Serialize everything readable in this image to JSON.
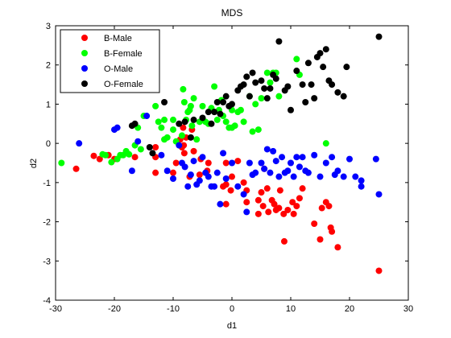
{
  "chart_data": {
    "type": "scatter",
    "title": "MDS",
    "xlabel": "d1",
    "ylabel": "d2",
    "xlim": [
      -30,
      30
    ],
    "ylim": [
      -4,
      3
    ],
    "xticks": [
      -30,
      -20,
      -10,
      0,
      10,
      20,
      30
    ],
    "yticks": [
      -4,
      -3,
      -2,
      -1,
      0,
      1,
      2,
      3
    ],
    "grid": false,
    "legend_position": "top-left",
    "series": [
      {
        "name": "B-Male",
        "color": "#ff0000",
        "points": [
          [
            -26.5,
            -0.65
          ],
          [
            -23.5,
            -0.32
          ],
          [
            -22.5,
            -0.4
          ],
          [
            -21,
            -0.3
          ],
          [
            -20,
            -0.4
          ],
          [
            -16.5,
            -0.35
          ],
          [
            -13,
            -0.1
          ],
          [
            -13,
            -0.35
          ],
          [
            -13,
            -0.75
          ],
          [
            -10,
            -0.75
          ],
          [
            -9.5,
            -0.5
          ],
          [
            -8.8,
            0.1
          ],
          [
            -8.5,
            -0.1
          ],
          [
            -8.3,
            0.4
          ],
          [
            -8.2,
            -0.05
          ],
          [
            -8.1,
            -0.25
          ],
          [
            -7.8,
            0.15
          ],
          [
            -7.2,
            -0.85
          ],
          [
            -6.8,
            0.35
          ],
          [
            -6.5,
            -0.2
          ],
          [
            -5.5,
            -0.8
          ],
          [
            -5.3,
            -0.4
          ],
          [
            -4.2,
            -0.7
          ],
          [
            -4,
            -0.5
          ],
          [
            -1,
            -0.5
          ],
          [
            -1,
            -1.05
          ],
          [
            -1,
            -1.55
          ],
          [
            0,
            -0.85
          ],
          [
            -0.2,
            -1.2
          ],
          [
            -1.5,
            -1.1
          ],
          [
            1,
            -0.45
          ],
          [
            2,
            -1
          ],
          [
            2.5,
            -1.2
          ],
          [
            2.5,
            -1.5
          ],
          [
            4.5,
            -1.45
          ],
          [
            4.5,
            -1.8
          ],
          [
            5,
            -1.25
          ],
          [
            5.3,
            -1.6
          ],
          [
            5.5,
            -0.65
          ],
          [
            6,
            -1.15
          ],
          [
            6.2,
            -1.75
          ],
          [
            6.8,
            -1.45
          ],
          [
            7.2,
            -1.55
          ],
          [
            7.5,
            -1.7
          ],
          [
            8,
            -1.65
          ],
          [
            8.2,
            -1.2
          ],
          [
            8.8,
            -1.8
          ],
          [
            8.9,
            -2.5
          ],
          [
            9.5,
            -1.7
          ],
          [
            10.3,
            -1.5
          ],
          [
            10.5,
            -1.8
          ],
          [
            11,
            -1.6
          ],
          [
            11.5,
            -1.4
          ],
          [
            12,
            -1.15
          ],
          [
            14,
            -2.05
          ],
          [
            15,
            -2.45
          ],
          [
            15.3,
            -1.65
          ],
          [
            16,
            -1.5
          ],
          [
            16.5,
            -1.6
          ],
          [
            16.8,
            -2.15
          ],
          [
            17,
            -2.25
          ],
          [
            18,
            -2.65
          ],
          [
            25,
            -3.25
          ]
        ]
      },
      {
        "name": "B-Female",
        "color": "#00ff00",
        "points": [
          [
            -29,
            -0.5
          ],
          [
            -22,
            -0.28
          ],
          [
            -21.5,
            -0.3
          ],
          [
            -20.5,
            -0.48
          ],
          [
            -19.5,
            -0.4
          ],
          [
            -19,
            -0.3
          ],
          [
            -18.5,
            -0.3
          ],
          [
            -18,
            -0.2
          ],
          [
            -17.5,
            -0.28
          ],
          [
            -16.5,
            -0.05
          ],
          [
            -16,
            0.4
          ],
          [
            -15.5,
            -0.15
          ],
          [
            -15,
            0.7
          ],
          [
            -13,
            0.95
          ],
          [
            -12.5,
            0.55
          ],
          [
            -12,
            0.4
          ],
          [
            -11.5,
            0.1
          ],
          [
            -11.5,
            0.6
          ],
          [
            -11,
            0.15
          ],
          [
            -10,
            0.6
          ],
          [
            -10,
            0.35
          ],
          [
            -9.5,
            0.05
          ],
          [
            -8.5,
            0.2
          ],
          [
            -8.3,
            1.38
          ],
          [
            -8.1,
            1.05
          ],
          [
            -7.8,
            0.6
          ],
          [
            -7.5,
            0.8
          ],
          [
            -7.2,
            0.85
          ],
          [
            -7,
            0.95
          ],
          [
            -6.8,
            0.45
          ],
          [
            -6.5,
            1.15
          ],
          [
            -6,
            0.1
          ],
          [
            -5.5,
            0.55
          ],
          [
            -5,
            0.95
          ],
          [
            -4.5,
            0.55
          ],
          [
            -4,
            0.5
          ],
          [
            -3.5,
            0.9
          ],
          [
            -3,
            1.45
          ],
          [
            -2.5,
            0.6
          ],
          [
            -2.2,
            0.85
          ],
          [
            -1.8,
            1.1
          ],
          [
            -1.5,
            0.7
          ],
          [
            -1,
            0.55
          ],
          [
            -0.5,
            0.4
          ],
          [
            0,
            0.4
          ],
          [
            0,
            0.85
          ],
          [
            0.5,
            0.45
          ],
          [
            1,
            0.8
          ],
          [
            1.5,
            0.85
          ],
          [
            2,
            0.55
          ],
          [
            3,
            1.2
          ],
          [
            3.5,
            0.3
          ],
          [
            4,
            1
          ],
          [
            4.5,
            0.35
          ],
          [
            5,
            1.15
          ],
          [
            6,
            1.8
          ],
          [
            6.5,
            1.55
          ],
          [
            7,
            1.8
          ],
          [
            7.5,
            1.8
          ],
          [
            8,
            1.2
          ],
          [
            11,
            2.15
          ],
          [
            11.5,
            1.75
          ],
          [
            16,
            0
          ]
        ]
      },
      {
        "name": "O-Male",
        "color": "#0000ff",
        "points": [
          [
            -26,
            0
          ],
          [
            -20,
            0.35
          ],
          [
            -19.5,
            0.4
          ],
          [
            -17,
            -0.7
          ],
          [
            -16,
            0.05
          ],
          [
            -14.5,
            0.7
          ],
          [
            -12,
            -0.3
          ],
          [
            -11,
            -0.7
          ],
          [
            -10,
            -0.9
          ],
          [
            -9,
            -0.05
          ],
          [
            -8.5,
            -0.5
          ],
          [
            -8,
            -0.6
          ],
          [
            -7.5,
            -1.1
          ],
          [
            -7,
            -0.8
          ],
          [
            -6.5,
            -0.45
          ],
          [
            -6,
            -1.05
          ],
          [
            -5.5,
            -0.95
          ],
          [
            -5,
            -0.35
          ],
          [
            -4.5,
            -0.75
          ],
          [
            -4,
            -0.85
          ],
          [
            -3.5,
            -1.1
          ],
          [
            -3,
            -1.1
          ],
          [
            -2.5,
            -0.75
          ],
          [
            -2,
            -1.55
          ],
          [
            -1.5,
            -0.25
          ],
          [
            -1,
            -0.9
          ],
          [
            0,
            -0.5
          ],
          [
            1,
            -1.1
          ],
          [
            2,
            -1.3
          ],
          [
            2.5,
            -1.75
          ],
          [
            3,
            -0.5
          ],
          [
            3.5,
            -0.8
          ],
          [
            4,
            -0.75
          ],
          [
            5,
            -0.5
          ],
          [
            5.5,
            -0.65
          ],
          [
            6,
            -0.15
          ],
          [
            6.5,
            -0.75
          ],
          [
            7,
            -0.2
          ],
          [
            7.5,
            -0.45
          ],
          [
            8,
            -0.85
          ],
          [
            8.5,
            -0.35
          ],
          [
            9,
            -0.75
          ],
          [
            9.5,
            -0.7
          ],
          [
            10,
            -0.5
          ],
          [
            10.5,
            -0.85
          ],
          [
            11,
            -0.35
          ],
          [
            11.5,
            -0.6
          ],
          [
            12,
            -0.35
          ],
          [
            12.5,
            -0.7
          ],
          [
            13,
            -0.75
          ],
          [
            14,
            -0.3
          ],
          [
            15,
            -0.85
          ],
          [
            16,
            -0.5
          ],
          [
            17,
            -0.35
          ],
          [
            17.5,
            -0.8
          ],
          [
            18,
            -0.7
          ],
          [
            19,
            -0.85
          ],
          [
            20,
            -0.4
          ],
          [
            21,
            -0.85
          ],
          [
            22,
            -0.95
          ],
          [
            25,
            -1.3
          ],
          [
            24.5,
            -0.4
          ],
          [
            22,
            -1.1
          ]
        ]
      },
      {
        "name": "O-Female",
        "color": "#000000",
        "points": [
          [
            -17,
            0.45
          ],
          [
            -16.5,
            0.5
          ],
          [
            -14,
            -0.1
          ],
          [
            -13.5,
            -0.25
          ],
          [
            -11.5,
            1.05
          ],
          [
            -9,
            0.5
          ],
          [
            -8,
            0.55
          ],
          [
            -7,
            0.15
          ],
          [
            -6.5,
            0.6
          ],
          [
            -5,
            0.65
          ],
          [
            -4,
            0.8
          ],
          [
            -3.5,
            0.5
          ],
          [
            -3,
            0.8
          ],
          [
            -2.5,
            1.05
          ],
          [
            -2,
            0.75
          ],
          [
            -1.5,
            1.05
          ],
          [
            -1,
            1.2
          ],
          [
            -0.5,
            0.95
          ],
          [
            0,
            1
          ],
          [
            1,
            1.35
          ],
          [
            1.5,
            1.45
          ],
          [
            2,
            1.5
          ],
          [
            2.5,
            1.7
          ],
          [
            3,
            1.2
          ],
          [
            3.5,
            1.8
          ],
          [
            4,
            1.55
          ],
          [
            5,
            1.6
          ],
          [
            5.5,
            1.4
          ],
          [
            6,
            1.15
          ],
          [
            6.5,
            1.4
          ],
          [
            7,
            1.75
          ],
          [
            7.5,
            1.65
          ],
          [
            8,
            2.6
          ],
          [
            9,
            1.35
          ],
          [
            9.5,
            1.45
          ],
          [
            10,
            0.85
          ],
          [
            11,
            1.85
          ],
          [
            12,
            1.5
          ],
          [
            12.5,
            1.05
          ],
          [
            13,
            2.05
          ],
          [
            13.5,
            1.5
          ],
          [
            14,
            1.15
          ],
          [
            14.5,
            2.2
          ],
          [
            15,
            2.3
          ],
          [
            15.5,
            1.95
          ],
          [
            16,
            2.4
          ],
          [
            16.5,
            1.6
          ],
          [
            17,
            1.5
          ],
          [
            18,
            1.3
          ],
          [
            19,
            1.2
          ],
          [
            19.5,
            1.95
          ],
          [
            25,
            2.72
          ]
        ]
      }
    ]
  }
}
